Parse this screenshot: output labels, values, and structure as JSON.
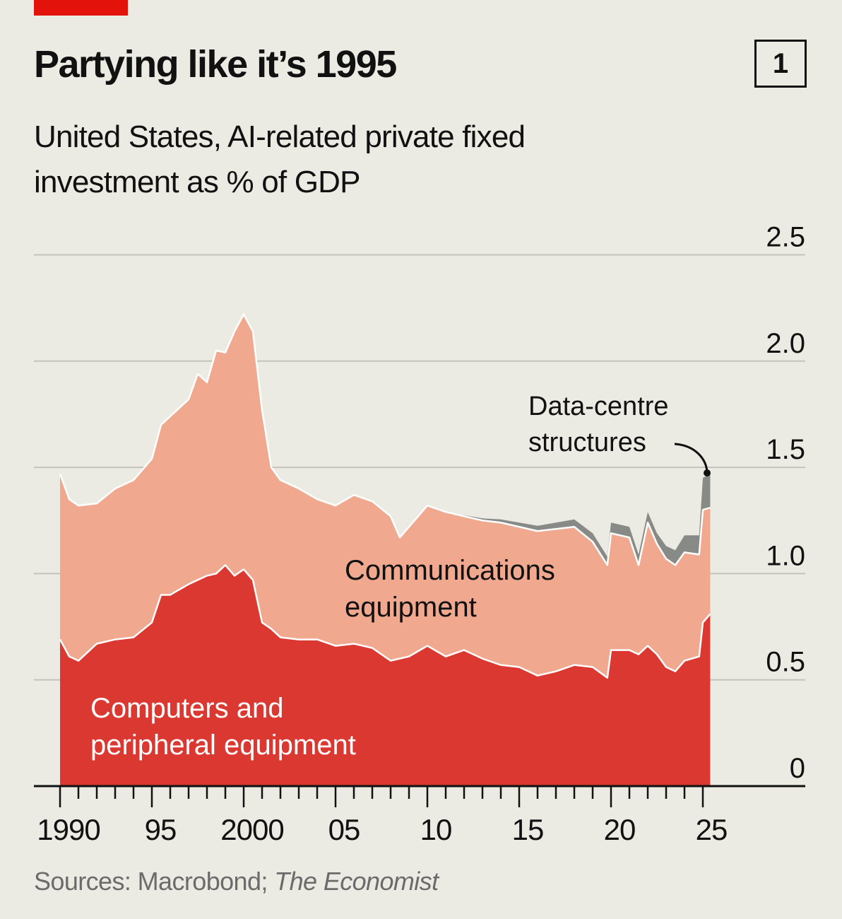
{
  "badge": "1",
  "sources_prefix": "Sources: Macrobond; ",
  "sources_italic": "The Economist",
  "colors": {
    "background": "#ecebe3",
    "computers": "#db3832",
    "communications": "#f0a88f",
    "data_centre": "#878a86",
    "accent": "#e3120b"
  },
  "chart_data": {
    "type": "area",
    "stacked": true,
    "title": "Partying like it’s 1995",
    "subtitle": "United States, AI-related private fixed investment as % of GDP",
    "xlabel": "",
    "ylabel": "",
    "xlim": [
      1990,
      2025.4
    ],
    "ylim": [
      0,
      2.5
    ],
    "grid": true,
    "y_axis_position": "right",
    "yticks": [
      0,
      0.5,
      1.0,
      1.5,
      2.0,
      2.5
    ],
    "ytick_labels": [
      "0",
      "0.5",
      "1.0",
      "1.5",
      "2.0",
      "2.5"
    ],
    "xticks": [
      1990,
      1995,
      2000,
      2005,
      2010,
      2015,
      2020,
      2025
    ],
    "xtick_labels": [
      "1990",
      "95",
      "2000",
      "05",
      "10",
      "15",
      "20",
      "25"
    ],
    "x": [
      1990,
      1990.5,
      1991,
      1992,
      1993,
      1994,
      1995,
      1995.5,
      1996,
      1997,
      1997.5,
      1998,
      1998.5,
      1999,
      1999.5,
      2000,
      2000.5,
      2001,
      2001.5,
      2002,
      2003,
      2004,
      2005,
      2006,
      2007,
      2008,
      2008.5,
      2009,
      2010,
      2011,
      2012,
      2013,
      2014,
      2015,
      2016,
      2017,
      2018,
      2019,
      2019.8,
      2020,
      2021,
      2021.5,
      2022,
      2022.5,
      2023,
      2023.5,
      2024,
      2024.8,
      2025,
      2025.4
    ],
    "series": [
      {
        "name": "Computers and peripheral equipment",
        "values": [
          0.69,
          0.61,
          0.59,
          0.67,
          0.69,
          0.7,
          0.77,
          0.9,
          0.9,
          0.95,
          0.97,
          0.99,
          1.0,
          1.04,
          0.99,
          1.02,
          0.97,
          0.77,
          0.74,
          0.7,
          0.69,
          0.69,
          0.66,
          0.67,
          0.65,
          0.59,
          0.6,
          0.61,
          0.66,
          0.61,
          0.64,
          0.6,
          0.57,
          0.56,
          0.52,
          0.54,
          0.57,
          0.56,
          0.51,
          0.64,
          0.64,
          0.62,
          0.66,
          0.62,
          0.56,
          0.54,
          0.59,
          0.61,
          0.77,
          0.81
        ]
      },
      {
        "name": "Communications equipment",
        "values": [
          0.78,
          0.74,
          0.73,
          0.66,
          0.71,
          0.74,
          0.77,
          0.8,
          0.84,
          0.87,
          0.97,
          0.91,
          1.05,
          1.0,
          1.15,
          1.2,
          1.17,
          1.0,
          0.76,
          0.74,
          0.71,
          0.66,
          0.66,
          0.7,
          0.69,
          0.68,
          0.57,
          0.61,
          0.66,
          0.68,
          0.63,
          0.65,
          0.67,
          0.66,
          0.68,
          0.67,
          0.65,
          0.59,
          0.53,
          0.55,
          0.53,
          0.42,
          0.58,
          0.52,
          0.51,
          0.5,
          0.51,
          0.48,
          0.53,
          0.5
        ]
      },
      {
        "name": "Data-centre structures",
        "values": [
          0,
          0,
          0,
          0,
          0,
          0,
          0,
          0,
          0,
          0,
          0,
          0,
          0,
          0,
          0,
          0,
          0,
          0,
          0,
          0,
          0,
          0,
          0,
          0,
          0,
          0,
          0,
          0,
          0,
          0,
          0.005,
          0.01,
          0.015,
          0.02,
          0.025,
          0.03,
          0.035,
          0.04,
          0.04,
          0.05,
          0.05,
          0.05,
          0.05,
          0.05,
          0.06,
          0.07,
          0.08,
          0.09,
          0.15,
          0.16
        ]
      }
    ],
    "annotations": [
      "Computers and peripheral equipment",
      "Communications equipment",
      "Data-centre structures"
    ]
  },
  "labels": {
    "computers_line1": "Computers and",
    "computers_line2": "peripheral equipment",
    "comms_line1": "Communications",
    "comms_line2": "equipment",
    "dc_line1": "Data-centre",
    "dc_line2": "structures"
  }
}
